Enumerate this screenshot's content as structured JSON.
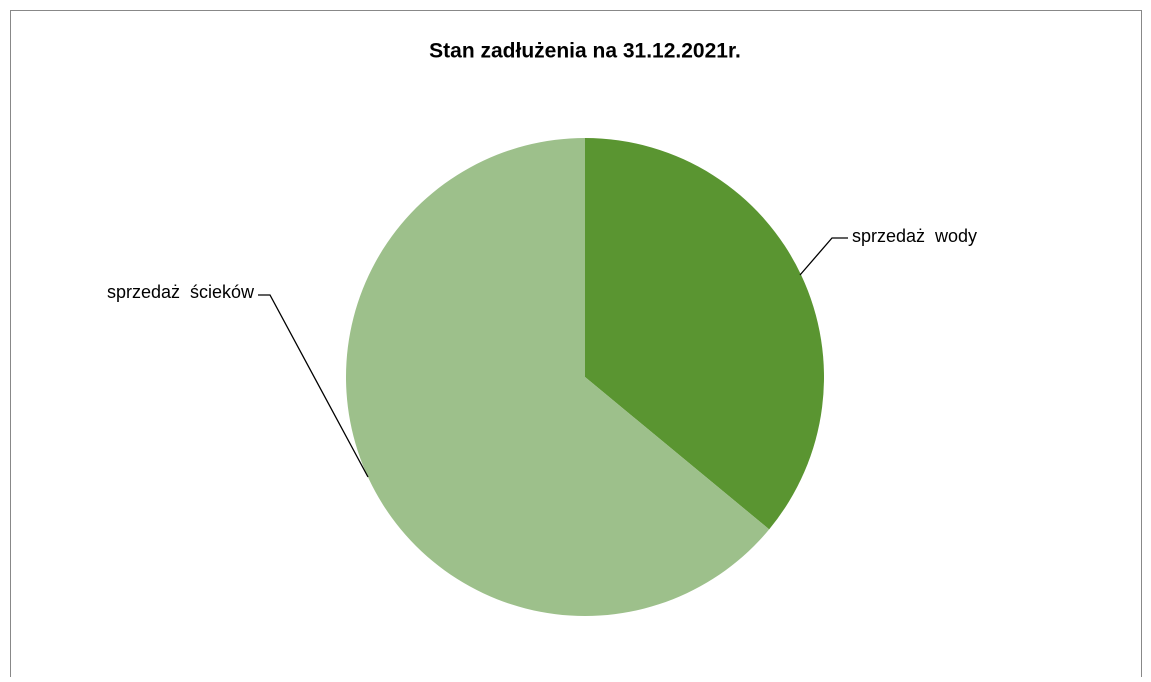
{
  "chart_data": {
    "type": "pie",
    "title": "Stan zadłużenia na 31.12.2021r.",
    "categories": [
      "sprzedaż  wody",
      "sprzedaż  ścieków"
    ],
    "values": [
      36,
      64
    ],
    "colors": [
      "#5a9531",
      "#9dc08b"
    ]
  }
}
